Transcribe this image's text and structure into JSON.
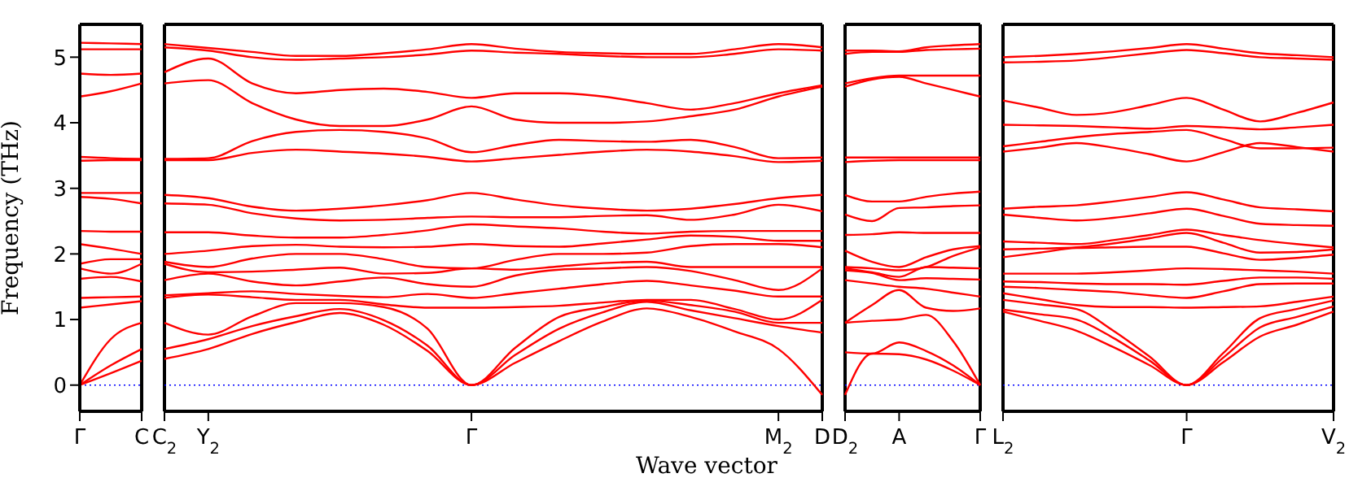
{
  "chart_data": [
    {
      "type": "line",
      "ylabel": "Frequency (THz)",
      "categories": [
        "Γ",
        null,
        "C"
      ],
      "ylim": [
        -0.4,
        5.5
      ],
      "yticks": [
        0,
        1,
        2,
        3,
        4,
        5
      ],
      "ref_lines": [
        {
          "axis": "y",
          "value": 0,
          "color": "#0000ff",
          "line_style": "dotted"
        }
      ],
      "series": [
        {
          "color": "#ff0000",
          "values": [
            0,
            0.18,
            0.37
          ]
        },
        {
          "color": "#ff0000",
          "values": [
            0,
            0.3,
            0.55
          ]
        },
        {
          "color": "#ff0000",
          "values": [
            0,
            0.7,
            0.95
          ]
        },
        {
          "color": "#ff0000",
          "values": [
            1.18,
            1.23,
            1.28
          ]
        },
        {
          "color": "#ff0000",
          "values": [
            1.33,
            1.34,
            1.35
          ]
        },
        {
          "color": "#ff0000",
          "values": [
            1.62,
            1.65,
            1.58
          ]
        },
        {
          "color": "#ff0000",
          "values": [
            1.78,
            1.7,
            1.85
          ]
        },
        {
          "color": "#ff0000",
          "values": [
            1.85,
            1.92,
            1.92
          ]
        },
        {
          "color": "#ff0000",
          "values": [
            2.15,
            2.08,
            2.0
          ]
        },
        {
          "color": "#ff0000",
          "values": [
            2.35,
            2.34,
            2.34
          ]
        },
        {
          "color": "#ff0000",
          "values": [
            2.87,
            2.84,
            2.77
          ]
        },
        {
          "color": "#ff0000",
          "values": [
            2.93,
            2.93,
            2.93
          ]
        },
        {
          "color": "#ff0000",
          "values": [
            3.42,
            3.43,
            3.43
          ]
        },
        {
          "color": "#ff0000",
          "values": [
            3.48,
            3.46,
            3.45
          ]
        },
        {
          "color": "#ff0000",
          "values": [
            4.4,
            4.48,
            4.6
          ]
        },
        {
          "color": "#ff0000",
          "values": [
            4.75,
            4.73,
            4.75
          ]
        },
        {
          "color": "#ff0000",
          "values": [
            5.12,
            5.12,
            5.12
          ]
        },
        {
          "color": "#ff0000",
          "values": [
            5.22,
            5.21,
            5.2
          ]
        }
      ]
    },
    {
      "type": "line",
      "xlabel": "Wave vector",
      "tick_labels": "x",
      "categories": [
        "C$_{2}$",
        "Y$_{2}$",
        null,
        null,
        null,
        null,
        null,
        "Γ",
        null,
        null,
        null,
        null,
        null,
        null,
        "M$_{2}$",
        "D"
      ],
      "ylim": [
        -0.4,
        5.5
      ],
      "yticks": [
        0,
        1,
        2,
        3,
        4,
        5
      ],
      "ref_lines": [
        {
          "axis": "y",
          "value": 0,
          "color": "#0000ff",
          "line_style": "dotted"
        }
      ],
      "series": [
        {
          "color": "#ff0000",
          "values": [
            0.4,
            0.55,
            0.78,
            0.96,
            1.1,
            0.92,
            0.52,
            0,
            0.34,
            0.67,
            0.97,
            1.17,
            1.04,
            0.82,
            0.55,
            -0.15
          ]
        },
        {
          "color": "#ff0000",
          "values": [
            0.55,
            0.7,
            0.9,
            1.05,
            1.16,
            0.99,
            0.6,
            0,
            0.46,
            0.86,
            1.11,
            1.27,
            1.14,
            1.02,
            0.9,
            0.8
          ]
        },
        {
          "color": "#ff0000",
          "values": [
            0.95,
            0.77,
            1.05,
            1.25,
            1.25,
            1.19,
            0.86,
            0,
            0.57,
            1.04,
            1.19,
            1.29,
            1.22,
            1.12,
            0.95,
            0.95
          ]
        },
        {
          "color": "#ff0000",
          "values": [
            1.33,
            1.38,
            1.34,
            1.3,
            1.3,
            1.23,
            1.18,
            1.18,
            1.19,
            1.21,
            1.26,
            1.3,
            1.3,
            1.16,
            1.0,
            1.3
          ]
        },
        {
          "color": "#ff0000",
          "values": [
            1.37,
            1.4,
            1.43,
            1.39,
            1.36,
            1.34,
            1.39,
            1.33,
            1.4,
            1.47,
            1.54,
            1.59,
            1.52,
            1.44,
            1.35,
            1.35
          ]
        },
        {
          "color": "#ff0000",
          "values": [
            1.6,
            1.7,
            1.58,
            1.52,
            1.58,
            1.64,
            1.54,
            1.5,
            1.67,
            1.76,
            1.78,
            1.8,
            1.74,
            1.6,
            1.45,
            1.78
          ]
        },
        {
          "color": "#ff0000",
          "values": [
            1.85,
            1.72,
            1.73,
            1.76,
            1.79,
            1.7,
            1.71,
            1.78,
            1.76,
            1.81,
            1.86,
            1.88,
            1.8,
            1.8,
            1.8,
            1.8
          ]
        },
        {
          "color": "#ff0000",
          "values": [
            1.88,
            1.8,
            1.93,
            2.0,
            2.0,
            1.92,
            1.8,
            1.78,
            1.91,
            2.0,
            2.0,
            2.02,
            2.12,
            2.15,
            2.15,
            2.1
          ]
        },
        {
          "color": "#ff0000",
          "values": [
            2.0,
            2.05,
            2.12,
            2.14,
            2.11,
            2.1,
            2.11,
            2.15,
            2.12,
            2.11,
            2.16,
            2.22,
            2.28,
            2.26,
            2.2,
            2.2
          ]
        },
        {
          "color": "#ff0000",
          "values": [
            2.33,
            2.33,
            2.28,
            2.25,
            2.25,
            2.29,
            2.36,
            2.45,
            2.42,
            2.39,
            2.34,
            2.31,
            2.34,
            2.35,
            2.35,
            2.35
          ]
        },
        {
          "color": "#ff0000",
          "values": [
            2.77,
            2.75,
            2.62,
            2.54,
            2.51,
            2.52,
            2.55,
            2.57,
            2.56,
            2.56,
            2.58,
            2.59,
            2.52,
            2.6,
            2.75,
            2.65
          ]
        },
        {
          "color": "#ff0000",
          "values": [
            2.9,
            2.85,
            2.72,
            2.66,
            2.69,
            2.74,
            2.82,
            2.93,
            2.83,
            2.74,
            2.69,
            2.66,
            2.69,
            2.76,
            2.85,
            2.9
          ]
        },
        {
          "color": "#ff0000",
          "values": [
            3.43,
            3.43,
            3.54,
            3.59,
            3.56,
            3.53,
            3.48,
            3.41,
            3.46,
            3.51,
            3.56,
            3.59,
            3.56,
            3.49,
            3.4,
            3.42
          ]
        },
        {
          "color": "#ff0000",
          "values": [
            3.45,
            3.46,
            3.72,
            3.86,
            3.89,
            3.86,
            3.76,
            3.55,
            3.66,
            3.74,
            3.72,
            3.71,
            3.74,
            3.63,
            3.46,
            3.47
          ]
        },
        {
          "color": "#ff0000",
          "values": [
            4.6,
            4.65,
            4.3,
            4.05,
            3.95,
            3.95,
            4.05,
            4.25,
            4.05,
            4.0,
            4.0,
            4.02,
            4.1,
            4.2,
            4.4,
            4.55
          ]
        },
        {
          "color": "#ff0000",
          "values": [
            4.77,
            4.98,
            4.6,
            4.45,
            4.5,
            4.52,
            4.47,
            4.38,
            4.45,
            4.45,
            4.4,
            4.3,
            4.2,
            4.3,
            4.45,
            4.57
          ]
        },
        {
          "color": "#ff0000",
          "values": [
            5.15,
            5.1,
            5.0,
            4.96,
            4.98,
            5.0,
            5.04,
            5.1,
            5.07,
            5.05,
            5.02,
            5.0,
            5.0,
            5.05,
            5.12,
            5.1
          ]
        },
        {
          "color": "#ff0000",
          "values": [
            5.2,
            5.14,
            5.08,
            5.02,
            5.02,
            5.06,
            5.12,
            5.2,
            5.13,
            5.08,
            5.06,
            5.05,
            5.05,
            5.12,
            5.2,
            5.15
          ]
        }
      ]
    },
    {
      "type": "line",
      "tick_labels": "x",
      "categories": [
        "D$_{2}$",
        null,
        "A",
        null,
        null,
        "Γ"
      ],
      "ylim": [
        -0.4,
        5.5
      ],
      "yticks": [
        0,
        1,
        2,
        3,
        4,
        5
      ],
      "ref_lines": [
        {
          "axis": "y",
          "value": 0,
          "color": "#0000ff",
          "line_style": "dotted"
        }
      ],
      "series": [
        {
          "color": "#ff0000",
          "values": [
            -0.15,
            0.48,
            0.47,
            0.39,
            0.22,
            0
          ]
        },
        {
          "color": "#ff0000",
          "values": [
            0.5,
            0.48,
            0.65,
            0.52,
            0.3,
            0
          ]
        },
        {
          "color": "#ff0000",
          "values": [
            0.95,
            0.98,
            1.0,
            1.07,
            0.67,
            0
          ]
        },
        {
          "color": "#ff0000",
          "values": [
            0.95,
            1.22,
            1.45,
            1.18,
            1.13,
            1.17
          ]
        },
        {
          "color": "#ff0000",
          "values": [
            1.6,
            1.55,
            1.5,
            1.47,
            1.41,
            1.35
          ]
        },
        {
          "color": "#ff0000",
          "values": [
            1.75,
            1.71,
            1.6,
            1.63,
            1.62,
            1.61
          ]
        },
        {
          "color": "#ff0000",
          "values": [
            1.78,
            1.72,
            1.65,
            1.8,
            1.79,
            1.78
          ]
        },
        {
          "color": "#ff0000",
          "values": [
            1.8,
            1.78,
            1.75,
            1.8,
            1.97,
            2.1
          ]
        },
        {
          "color": "#ff0000",
          "values": [
            2.05,
            1.88,
            1.8,
            1.95,
            2.07,
            2.12
          ]
        },
        {
          "color": "#ff0000",
          "values": [
            2.29,
            2.3,
            2.33,
            2.32,
            2.32,
            2.32
          ]
        },
        {
          "color": "#ff0000",
          "values": [
            2.6,
            2.5,
            2.7,
            2.71,
            2.73,
            2.74
          ]
        },
        {
          "color": "#ff0000",
          "values": [
            2.9,
            2.8,
            2.8,
            2.87,
            2.92,
            2.95
          ]
        },
        {
          "color": "#ff0000",
          "values": [
            3.4,
            3.42,
            3.43,
            3.43,
            3.43,
            3.43
          ]
        },
        {
          "color": "#ff0000",
          "values": [
            3.47,
            3.47,
            3.47,
            3.47,
            3.47,
            3.47
          ]
        },
        {
          "color": "#ff0000",
          "values": [
            4.55,
            4.66,
            4.7,
            4.6,
            4.5,
            4.4
          ]
        },
        {
          "color": "#ff0000",
          "values": [
            4.6,
            4.68,
            4.72,
            4.72,
            4.72,
            4.72
          ]
        },
        {
          "color": "#ff0000",
          "values": [
            5.05,
            5.08,
            5.08,
            5.11,
            5.12,
            5.13
          ]
        },
        {
          "color": "#ff0000",
          "values": [
            5.1,
            5.1,
            5.09,
            5.15,
            5.18,
            5.2
          ]
        }
      ]
    },
    {
      "type": "line",
      "tick_labels": "x",
      "categories": [
        "L$_{2}$",
        null,
        null,
        null,
        null,
        "Γ",
        null,
        null,
        null,
        "V$_{2}$"
      ],
      "ylim": [
        -0.4,
        5.5
      ],
      "yticks": [
        0,
        1,
        2,
        3,
        4,
        5
      ],
      "ref_lines": [
        {
          "axis": "y",
          "value": 0,
          "color": "#0000ff",
          "line_style": "dotted"
        }
      ],
      "series": [
        {
          "color": "#ff0000",
          "values": [
            1.12,
            0.98,
            0.83,
            0.58,
            0.3,
            0,
            0.35,
            0.74,
            0.92,
            1.12
          ]
        },
        {
          "color": "#ff0000",
          "values": [
            1.15,
            1.08,
            1.0,
            0.72,
            0.37,
            0,
            0.42,
            0.88,
            1.04,
            1.2
          ]
        },
        {
          "color": "#ff0000",
          "values": [
            1.3,
            1.23,
            1.16,
            0.83,
            0.43,
            0,
            0.49,
            1.02,
            1.16,
            1.29
          ]
        },
        {
          "color": "#ff0000",
          "values": [
            1.4,
            1.31,
            1.22,
            1.19,
            1.19,
            1.18,
            1.19,
            1.2,
            1.27,
            1.35
          ]
        },
        {
          "color": "#ff0000",
          "values": [
            1.5,
            1.48,
            1.45,
            1.42,
            1.37,
            1.33,
            1.43,
            1.54,
            1.55,
            1.55
          ]
        },
        {
          "color": "#ff0000",
          "values": [
            1.58,
            1.57,
            1.55,
            1.54,
            1.54,
            1.53,
            1.59,
            1.64,
            1.64,
            1.62
          ]
        },
        {
          "color": "#ff0000",
          "values": [
            1.7,
            1.7,
            1.7,
            1.72,
            1.75,
            1.78,
            1.77,
            1.75,
            1.73,
            1.7
          ]
        },
        {
          "color": "#ff0000",
          "values": [
            1.95,
            2.02,
            2.09,
            2.1,
            2.11,
            2.11,
            2.01,
            1.91,
            1.94,
            1.99
          ]
        },
        {
          "color": "#ff0000",
          "values": [
            2.07,
            2.08,
            2.1,
            2.16,
            2.24,
            2.32,
            2.17,
            2.02,
            2.03,
            2.07
          ]
        },
        {
          "color": "#ff0000",
          "values": [
            2.19,
            2.17,
            2.15,
            2.21,
            2.29,
            2.37,
            2.29,
            2.21,
            2.15,
            2.1
          ]
        },
        {
          "color": "#ff0000",
          "values": [
            2.6,
            2.55,
            2.51,
            2.55,
            2.62,
            2.69,
            2.58,
            2.46,
            2.44,
            2.43
          ]
        },
        {
          "color": "#ff0000",
          "values": [
            2.69,
            2.72,
            2.74,
            2.8,
            2.87,
            2.94,
            2.83,
            2.71,
            2.68,
            2.65
          ]
        },
        {
          "color": "#ff0000",
          "values": [
            3.56,
            3.62,
            3.69,
            3.62,
            3.52,
            3.41,
            3.55,
            3.69,
            3.63,
            3.56
          ]
        },
        {
          "color": "#ff0000",
          "values": [
            3.64,
            3.71,
            3.78,
            3.83,
            3.86,
            3.89,
            3.75,
            3.61,
            3.61,
            3.62
          ]
        },
        {
          "color": "#ff0000",
          "values": [
            3.97,
            3.96,
            3.95,
            3.93,
            3.91,
            3.95,
            3.93,
            3.9,
            3.93,
            3.97
          ]
        },
        {
          "color": "#ff0000",
          "values": [
            4.34,
            4.23,
            4.12,
            4.16,
            4.27,
            4.38,
            4.2,
            4.02,
            4.15,
            4.31
          ]
        },
        {
          "color": "#ff0000",
          "values": [
            4.92,
            4.93,
            4.95,
            5.0,
            5.06,
            5.11,
            5.06,
            5.0,
            4.98,
            4.96
          ]
        },
        {
          "color": "#ff0000",
          "values": [
            5.0,
            5.02,
            5.05,
            5.09,
            5.14,
            5.2,
            5.13,
            5.06,
            5.03,
            5.0
          ]
        }
      ]
    }
  ]
}
